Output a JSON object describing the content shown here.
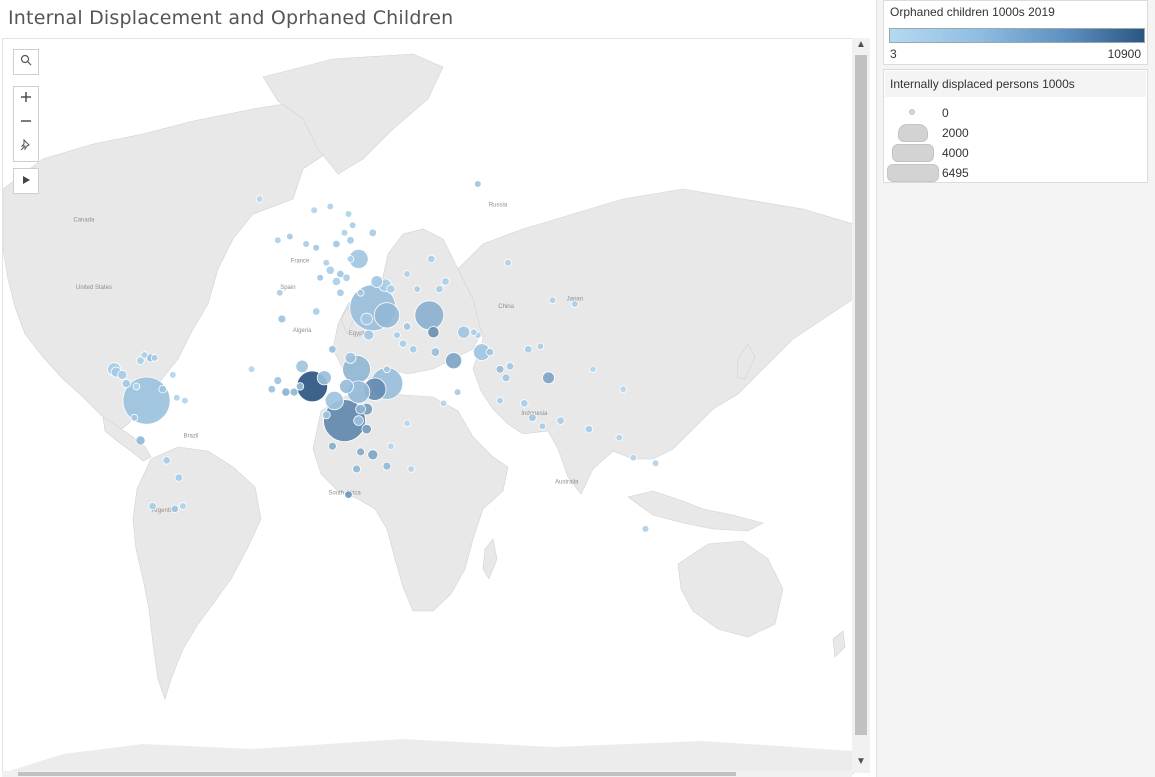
{
  "dashboard": {
    "title": "Internal Displacement and Oprhaned Children"
  },
  "map_tools": {
    "search": "search-icon",
    "zoom_in": "zoom-in-icon",
    "zoom_out": "zoom-out-icon",
    "pin": "pin-icon",
    "play": "play-icon"
  },
  "map_labels": [
    {
      "text": "Canada",
      "lon": -105,
      "lat": 58
    },
    {
      "text": "United States",
      "lon": -100,
      "lat": 40
    },
    {
      "text": "Brazil",
      "lon": -52,
      "lat": -9
    },
    {
      "text": "Argentina",
      "lon": -65,
      "lat": -35
    },
    {
      "text": "France",
      "lon": 2,
      "lat": 47
    },
    {
      "text": "Spain",
      "lon": -4,
      "lat": 40
    },
    {
      "text": "Algeria",
      "lon": 3,
      "lat": 28
    },
    {
      "text": "Egypt",
      "lon": 30,
      "lat": 27
    },
    {
      "text": "Russia",
      "lon": 100,
      "lat": 62
    },
    {
      "text": "China",
      "lon": 104,
      "lat": 35
    },
    {
      "text": "Japan",
      "lon": 138,
      "lat": 37
    },
    {
      "text": "Indonesia",
      "lon": 118,
      "lat": -1
    },
    {
      "text": "Australia",
      "lon": 134,
      "lat": -25
    },
    {
      "text": "South Africa",
      "lon": 24,
      "lat": -29
    }
  ],
  "chart_data": {
    "type": "map",
    "title": "Internal Displacement and Oprhaned Children",
    "color_legend": {
      "title": "Orphaned children 1000s 2019",
      "min": 3,
      "max": 10900,
      "colors": [
        "#b5d9f2",
        "#2c5682"
      ]
    },
    "size_legend": {
      "title": "Internally displaced persons 1000s",
      "values": [
        0,
        2000,
        4000,
        6495
      ]
    },
    "points": [
      {
        "lon": -74,
        "lat": 4,
        "size": 6495,
        "color": 480
      },
      {
        "lon": 38,
        "lat": 35,
        "size": 6100,
        "color": 620
      },
      {
        "lon": 24,
        "lat": -3,
        "size": 5000,
        "color": 4600
      },
      {
        "lon": 45,
        "lat": 10,
        "size": 2600,
        "color": 660
      },
      {
        "lon": 8,
        "lat": 9,
        "size": 2400,
        "color": 10900
      },
      {
        "lon": 66,
        "lat": 33,
        "size": 2100,
        "color": 1300
      },
      {
        "lon": 30,
        "lat": 15,
        "size": 1900,
        "color": 1000
      },
      {
        "lon": 45,
        "lat": 33,
        "size": 1500,
        "color": 880
      },
      {
        "lon": 39,
        "lat": 8,
        "size": 1100,
        "color": 4200
      },
      {
        "lon": 31,
        "lat": 7,
        "size": 1100,
        "color": 850
      },
      {
        "lon": 19,
        "lat": 4,
        "size": 650,
        "color": 420
      },
      {
        "lon": -90,
        "lat": 15,
        "size": 240,
        "color": 200
      },
      {
        "lon": 31,
        "lat": 48,
        "size": 730,
        "color": 340
      },
      {
        "lon": 92,
        "lat": 21,
        "size": 500,
        "color": 360
      },
      {
        "lon": 83,
        "lat": 28,
        "size": 180,
        "color": 420
      },
      {
        "lon": 78,
        "lat": 18,
        "size": 450,
        "color": 2100
      },
      {
        "lon": 25,
        "lat": 9,
        "size": 280,
        "color": 700
      },
      {
        "lon": 14,
        "lat": 12,
        "size": 300,
        "color": 620
      },
      {
        "lon": 3,
        "lat": 16,
        "size": 200,
        "color": 410
      },
      {
        "lon": 35,
        "lat": 1,
        "size": 160,
        "color": 2600
      },
      {
        "lon": 27,
        "lat": 19,
        "size": 120,
        "color": 460
      },
      {
        "lon": 125,
        "lat": 12,
        "size": 170,
        "color": 2100
      },
      {
        "lon": 101,
        "lat": 15,
        "size": 30,
        "color": 700
      },
      {
        "lon": 44,
        "lat": 41,
        "size": 200,
        "color": 200
      },
      {
        "lon": 40,
        "lat": 42,
        "size": 160,
        "color": 300
      },
      {
        "lon": 35,
        "lat": 32,
        "size": 150,
        "color": 260
      },
      {
        "lon": 36,
        "lat": 27,
        "size": 90,
        "color": 300
      },
      {
        "lon": 68,
        "lat": 28,
        "size": 140,
        "color": 3800
      },
      {
        "lon": 69,
        "lat": 21,
        "size": 50,
        "color": 600
      },
      {
        "lon": 32,
        "lat": 1,
        "size": 80,
        "color": 1200
      },
      {
        "lon": 31,
        "lat": -3,
        "size": 80,
        "color": 500
      },
      {
        "lon": 35,
        "lat": -6,
        "size": 70,
        "color": 2800
      },
      {
        "lon": 38,
        "lat": -15,
        "size": 90,
        "color": 2100
      },
      {
        "lon": 45,
        "lat": -19,
        "size": 30,
        "color": 900
      },
      {
        "lon": 32,
        "lat": -14,
        "size": 30,
        "color": 1700
      },
      {
        "lon": 30,
        "lat": -20,
        "size": 30,
        "color": 1000
      },
      {
        "lon": 26,
        "lat": -29,
        "size": 20,
        "color": 3200
      },
      {
        "lon": 18,
        "lat": -12,
        "size": 30,
        "color": 1500
      },
      {
        "lon": 15,
        "lat": -1,
        "size": 30,
        "color": 350
      },
      {
        "lon": -12,
        "lat": 8,
        "size": 20,
        "color": 500
      },
      {
        "lon": -9,
        "lat": 11,
        "size": 30,
        "color": 400
      },
      {
        "lon": -1,
        "lat": 7,
        "size": 30,
        "color": 1000
      },
      {
        "lon": -5,
        "lat": 7,
        "size": 40,
        "color": 1200
      },
      {
        "lon": 2,
        "lat": 9,
        "size": 20,
        "color": 650
      },
      {
        "lon": 18,
        "lat": 22,
        "size": 20,
        "color": 600
      },
      {
        "lon": 10,
        "lat": 34,
        "size": 20,
        "color": 150
      },
      {
        "lon": -7,
        "lat": 32,
        "size": 30,
        "color": 450
      },
      {
        "lon": -84,
        "lat": 10,
        "size": 40,
        "color": 300
      },
      {
        "lon": -86,
        "lat": 13,
        "size": 60,
        "color": 180
      },
      {
        "lon": -89,
        "lat": 14,
        "size": 90,
        "color": 200
      },
      {
        "lon": -72,
        "lat": 19,
        "size": 30,
        "color": 600
      },
      {
        "lon": -77,
        "lat": 18,
        "size": 20,
        "color": 120
      },
      {
        "lon": -66,
        "lat": 8,
        "size": 20,
        "color": 400
      },
      {
        "lon": -77,
        "lat": -10,
        "size": 60,
        "color": 900
      },
      {
        "lon": -64,
        "lat": -17,
        "size": 20,
        "color": 200
      },
      {
        "lon": -58,
        "lat": -23,
        "size": 20,
        "color": 200
      },
      {
        "lon": -71,
        "lat": -33,
        "size": 20,
        "color": 200
      },
      {
        "lon": -60,
        "lat": -34,
        "size": 20,
        "color": 400
      },
      {
        "lon": -56,
        "lat": -33,
        "size": 10,
        "color": 80
      },
      {
        "lon": 20,
        "lat": 52,
        "size": 20,
        "color": 300
      },
      {
        "lon": 22,
        "lat": 44,
        "size": 20,
        "color": 300
      },
      {
        "lon": 17,
        "lat": 45,
        "size": 40,
        "color": 150
      },
      {
        "lon": 20,
        "lat": 42,
        "size": 40,
        "color": 120
      },
      {
        "lon": 22,
        "lat": 39,
        "size": 20,
        "color": 200
      },
      {
        "lon": 25,
        "lat": 43,
        "size": 20,
        "color": 150
      },
      {
        "lon": 28,
        "lat": 57,
        "size": 10,
        "color": 120
      },
      {
        "lon": 27,
        "lat": 53,
        "size": 20,
        "color": 200
      },
      {
        "lon": 38,
        "lat": 55,
        "size": 20,
        "color": 200
      },
      {
        "lon": 47,
        "lat": 40,
        "size": 40,
        "color": 180
      },
      {
        "lon": 55,
        "lat": 30,
        "size": 20,
        "color": 400
      },
      {
        "lon": 58,
        "lat": 22,
        "size": 20,
        "color": 200
      },
      {
        "lon": 53,
        "lat": 24,
        "size": 20,
        "color": 150
      },
      {
        "lon": 60,
        "lat": 40,
        "size": 10,
        "color": 150
      },
      {
        "lon": 71,
        "lat": 40,
        "size": 20,
        "color": 150
      },
      {
        "lon": 74,
        "lat": 42,
        "size": 20,
        "color": 150
      },
      {
        "lon": 67,
        "lat": 48,
        "size": 20,
        "color": 150
      },
      {
        "lon": 90,
        "lat": 27,
        "size": 10,
        "color": 100
      },
      {
        "lon": 96,
        "lat": 21,
        "size": 20,
        "color": 400
      },
      {
        "lon": 104,
        "lat": 12,
        "size": 30,
        "color": 400
      },
      {
        "lon": 106,
        "lat": 16,
        "size": 20,
        "color": 300
      },
      {
        "lon": 115,
        "lat": 22,
        "size": 20,
        "color": 200
      },
      {
        "lon": 121,
        "lat": 23,
        "size": 10,
        "color": 120
      },
      {
        "lon": 113,
        "lat": 3,
        "size": 20,
        "color": 150
      },
      {
        "lon": 117,
        "lat": -2,
        "size": 30,
        "color": 300
      },
      {
        "lon": 122,
        "lat": -5,
        "size": 10,
        "color": 200
      },
      {
        "lon": 131,
        "lat": -3,
        "size": 20,
        "color": 150
      },
      {
        "lon": 145,
        "lat": -6,
        "size": 20,
        "color": 200
      },
      {
        "lon": 160,
        "lat": -9,
        "size": 10,
        "color": 50
      },
      {
        "lon": 167,
        "lat": -16,
        "size": 10,
        "color": 30
      },
      {
        "lon": 178,
        "lat": -18,
        "size": 10,
        "color": 30
      },
      {
        "lon": 173,
        "lat": -41,
        "size": 10,
        "color": 80
      },
      {
        "lon": 147,
        "lat": 15,
        "size": 10,
        "color": 10
      },
      {
        "lon": 162,
        "lat": 8,
        "size": 10,
        "color": 10
      },
      {
        "lon": 80,
        "lat": 7,
        "size": 10,
        "color": 200
      },
      {
        "lon": 73,
        "lat": 3,
        "size": 10,
        "color": 20
      },
      {
        "lon": 55,
        "lat": -4,
        "size": 10,
        "color": 10
      },
      {
        "lon": 57,
        "lat": -20,
        "size": 10,
        "color": 30
      },
      {
        "lon": 47,
        "lat": -12,
        "size": 10,
        "color": 20
      },
      {
        "lon": -22,
        "lat": 15,
        "size": 10,
        "color": 20
      },
      {
        "lon": -18,
        "lat": 64,
        "size": 10,
        "color": 10
      },
      {
        "lon": -9,
        "lat": 53,
        "size": 10,
        "color": 80
      },
      {
        "lon": -3,
        "lat": 54,
        "size": 10,
        "color": 200
      },
      {
        "lon": 5,
        "lat": 52,
        "size": 10,
        "color": 150
      },
      {
        "lon": 10,
        "lat": 51,
        "size": 10,
        "color": 300
      },
      {
        "lon": 15,
        "lat": 47,
        "size": 10,
        "color": 80
      },
      {
        "lon": 26,
        "lat": 60,
        "size": 10,
        "color": 60
      },
      {
        "lon": 17,
        "lat": 62,
        "size": 10,
        "color": 60
      },
      {
        "lon": 9,
        "lat": 61,
        "size": 10,
        "color": 40
      },
      {
        "lon": 27,
        "lat": 48,
        "size": 10,
        "color": 100
      },
      {
        "lon": 24,
        "lat": 55,
        "size": 10,
        "color": 80
      },
      {
        "lon": 12,
        "lat": 43,
        "size": 10,
        "color": 300
      },
      {
        "lon": -8,
        "lat": 39,
        "size": 10,
        "color": 120
      },
      {
        "lon": 45,
        "lat": 15,
        "size": 10,
        "color": 300
      },
      {
        "lon": 50,
        "lat": 27,
        "size": 10,
        "color": 200
      },
      {
        "lon": 32,
        "lat": 39,
        "size": 10,
        "color": 300
      },
      {
        "lon": 138,
        "lat": 36,
        "size": 10,
        "color": 150
      },
      {
        "lon": 127,
        "lat": 37,
        "size": 10,
        "color": 100
      },
      {
        "lon": 105,
        "lat": 47,
        "size": 10,
        "color": 80
      },
      {
        "lon": 88,
        "lat": 28,
        "size": 10,
        "color": 120
      },
      {
        "lon": 101,
        "lat": 4,
        "size": 10,
        "color": 150
      },
      {
        "lon": -75,
        "lat": 20,
        "size": 10,
        "color": 100
      },
      {
        "lon": -70,
        "lat": 19,
        "size": 10,
        "color": 200
      },
      {
        "lon": -61,
        "lat": 13,
        "size": 10,
        "color": 20
      },
      {
        "lon": -59,
        "lat": 5,
        "size": 10,
        "color": 30
      },
      {
        "lon": -55,
        "lat": 4,
        "size": 10,
        "color": 20
      },
      {
        "lon": -79,
        "lat": 9,
        "size": 10,
        "color": 50
      },
      {
        "lon": -80,
        "lat": -2,
        "size": 10,
        "color": 300
      },
      {
        "lon": 55,
        "lat": 44,
        "size": 10,
        "color": 100
      },
      {
        "lon": 90,
        "lat": 68,
        "size": 10,
        "color": 400
      }
    ]
  },
  "legend": {
    "color_title": "Orphaned children 1000s 2019",
    "color_min": "3",
    "color_max": "10900",
    "size_title": "Internally displaced persons 1000s",
    "size_labels": [
      "0",
      "2000",
      "4000",
      "6495"
    ]
  },
  "scrollbar": {
    "up": "▲",
    "down": "▼"
  }
}
